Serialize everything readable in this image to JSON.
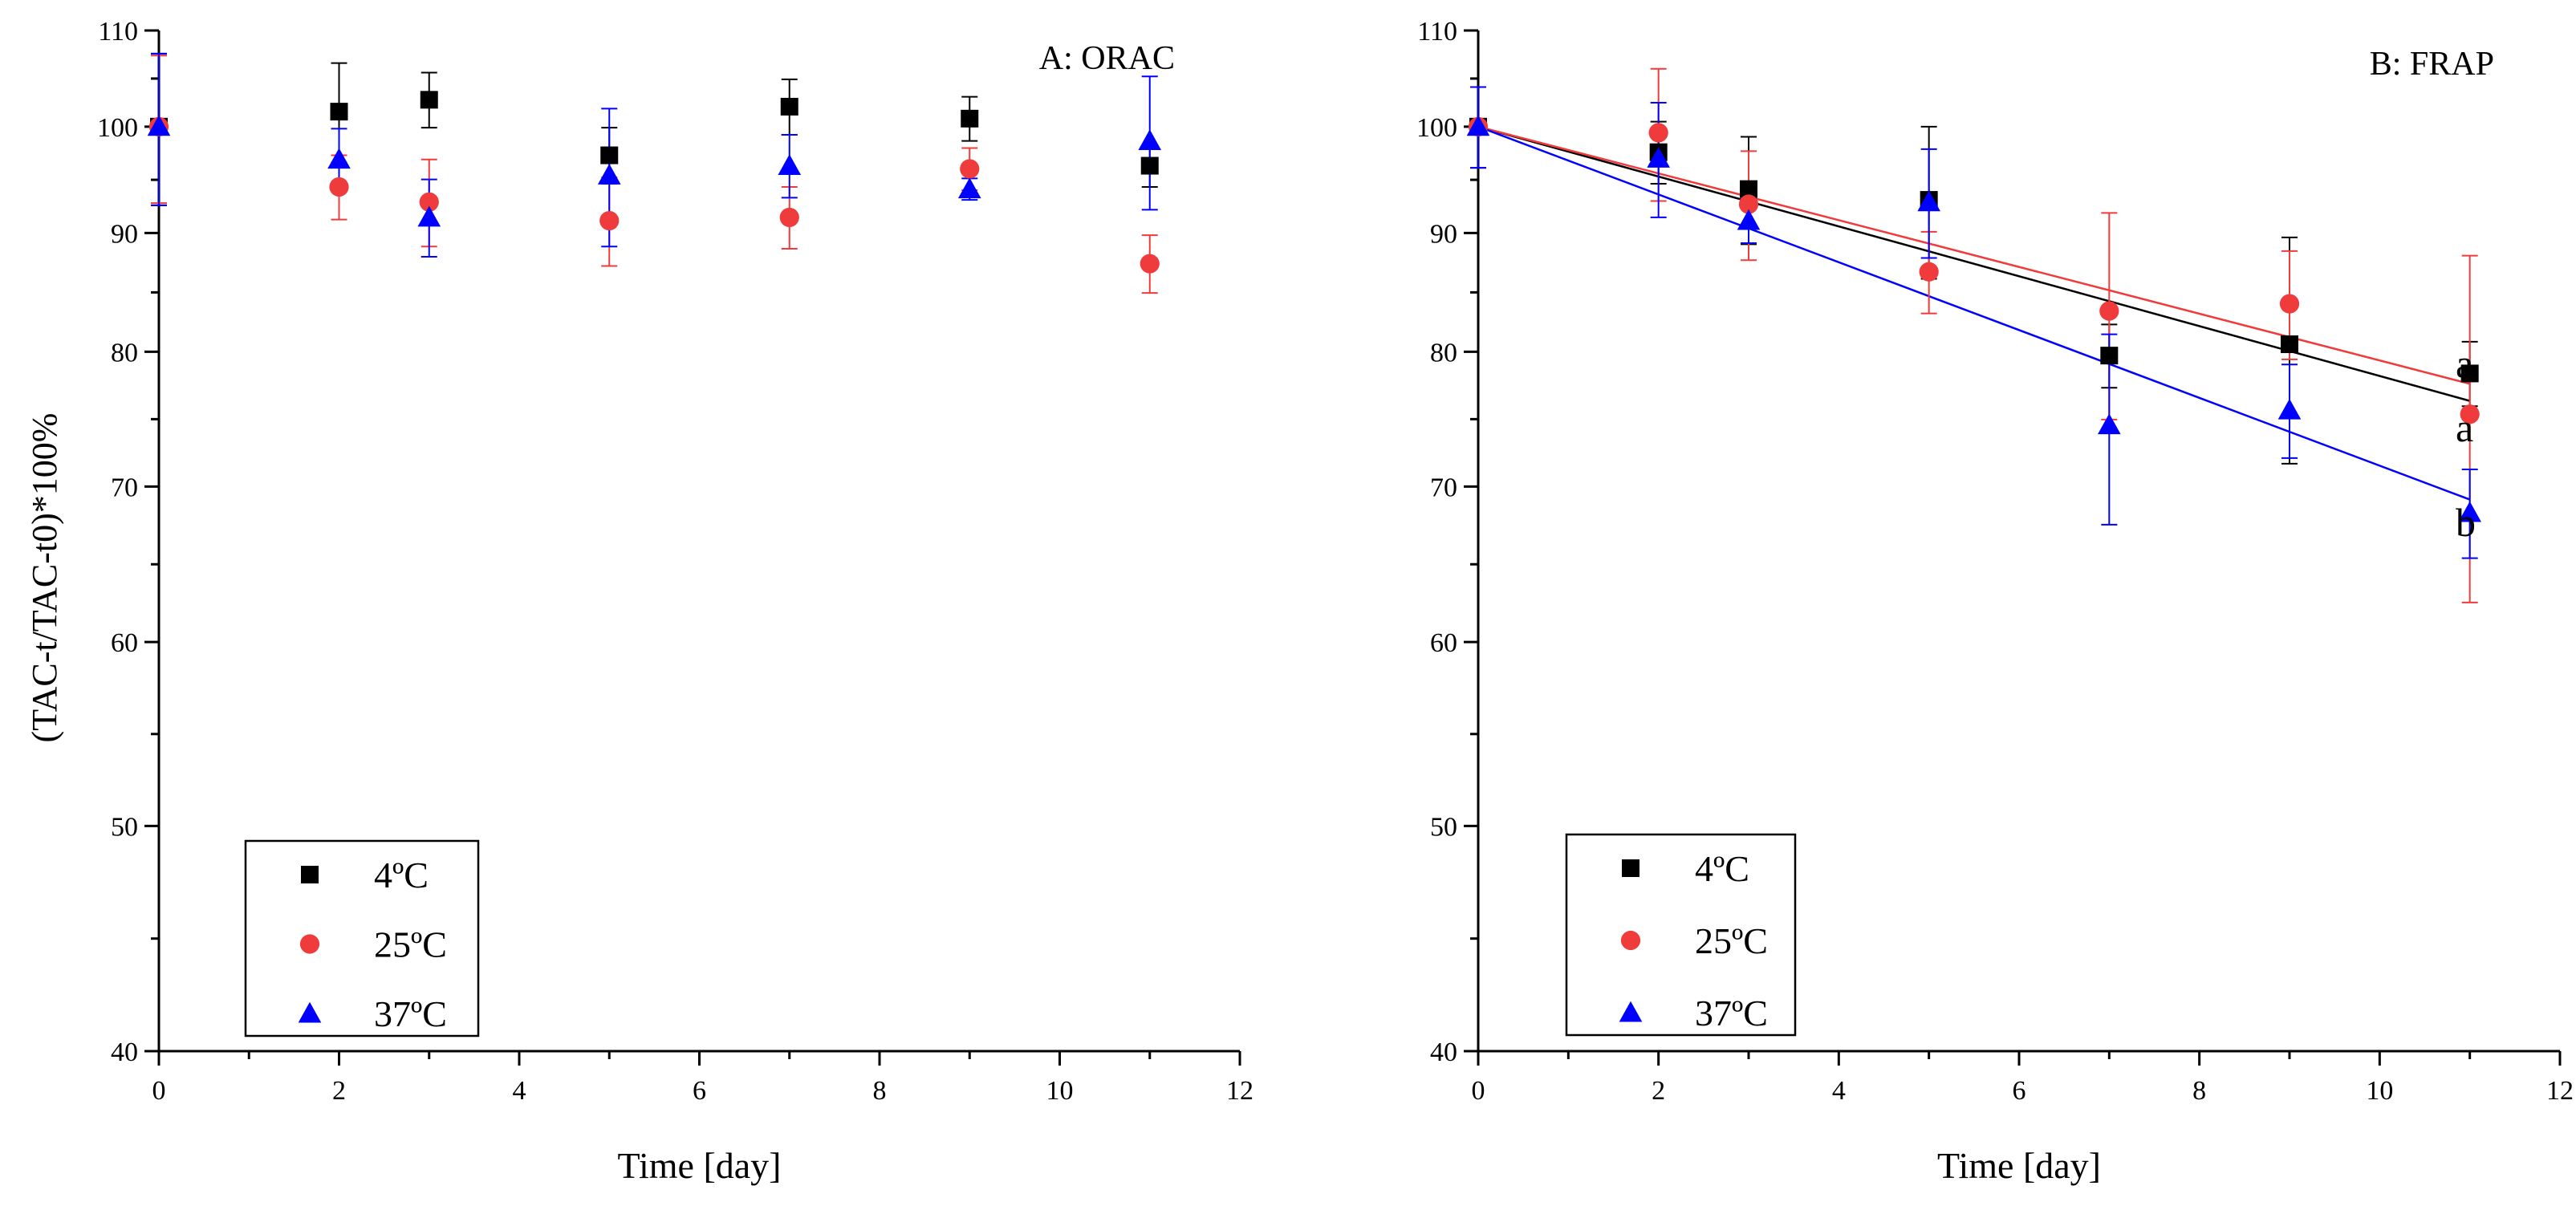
{
  "colors": {
    "c4": "#000000",
    "c25": "#ef3b3b",
    "c37": "#0000ff"
  },
  "shared_ylabel": "(TAC-t/TAC-t0)*100%",
  "legend_entries": [
    {
      "label": "4ºC",
      "marker": "square-icon",
      "color": "#000000"
    },
    {
      "label": "25ºC",
      "marker": "circle-icon",
      "color": "#ef3b3b"
    },
    {
      "label": "37ºC",
      "marker": "triangle-icon",
      "color": "#0000ff"
    }
  ],
  "chart_data": [
    {
      "type": "scatter",
      "title": "A: ORAC",
      "xlabel": "Time [day]",
      "ylabel": "(TAC-t/TAC-t0)*100%",
      "xlim": [
        0,
        12
      ],
      "ylim": [
        40,
        110
      ],
      "yscale": "log",
      "xticks": [
        0,
        2,
        4,
        6,
        8,
        10,
        12
      ],
      "yticks": [
        40,
        50,
        60,
        70,
        80,
        90,
        100,
        110
      ],
      "legend_position": "bottom-left",
      "series": [
        {
          "name": "4ºC",
          "marker": "square",
          "color": "#000000",
          "x": [
            0,
            2,
            3,
            5,
            7,
            9,
            11
          ],
          "y": [
            100.0,
            101.5,
            102.7,
            97.2,
            102.0,
            100.8,
            96.2
          ],
          "err": [
            7.5,
            5.0,
            2.8,
            2.7,
            2.8,
            2.2,
            2.0
          ]
        },
        {
          "name": "25ºC",
          "marker": "circle",
          "color": "#ef3b3b",
          "x": [
            0,
            2,
            3,
            5,
            7,
            9,
            11
          ],
          "y": [
            100.0,
            94.2,
            92.8,
            91.1,
            91.4,
            95.9,
            87.3
          ],
          "err": [
            7.3,
            3.0,
            4.0,
            4.0,
            2.8,
            2.0,
            2.5
          ]
        },
        {
          "name": "37ºC",
          "marker": "triangle",
          "color": "#0000ff",
          "x": [
            0,
            2,
            3,
            5,
            7,
            9,
            11
          ],
          "y": [
            100.0,
            96.8,
            91.4,
            95.3,
            96.2,
            94.0,
            98.6
          ],
          "err": [
            7.5,
            3.0,
            3.5,
            6.5,
            3.0,
            1.0,
            6.5
          ]
        }
      ],
      "fits": [],
      "annotations": []
    },
    {
      "type": "scatter",
      "title": "B: FRAP",
      "xlabel": "Time [day]",
      "ylabel": "(TAC-t/TAC-t0)*100%",
      "xlim": [
        0,
        12
      ],
      "ylim": [
        40,
        110
      ],
      "yscale": "log",
      "xticks": [
        0,
        2,
        4,
        6,
        8,
        10,
        12
      ],
      "yticks": [
        40,
        50,
        60,
        70,
        80,
        90,
        100,
        110
      ],
      "legend_position": "bottom-left",
      "series": [
        {
          "name": "4ºC",
          "marker": "square",
          "color": "#000000",
          "x": [
            0,
            2,
            3,
            5,
            7,
            9,
            11
          ],
          "y": [
            100.0,
            97.5,
            94.0,
            93.0,
            79.7,
            80.6,
            78.3
          ],
          "err": [
            4.0,
            3.0,
            5.0,
            7.0,
            2.5,
            9.0,
            2.5
          ]
        },
        {
          "name": "25ºC",
          "marker": "circle",
          "color": "#ef3b3b",
          "x": [
            0,
            2,
            3,
            5,
            7,
            9,
            11
          ],
          "y": [
            100.0,
            99.4,
            92.6,
            86.6,
            83.3,
            83.9,
            75.2
          ],
          "err": [
            4.0,
            6.5,
            5.0,
            3.5,
            8.5,
            4.5,
            12.8
          ]
        },
        {
          "name": "37ºC",
          "marker": "triangle",
          "color": "#0000ff",
          "x": [
            0,
            2,
            3,
            5,
            7,
            9,
            11
          ],
          "y": [
            100.0,
            96.9,
            91.1,
            92.8,
            74.4,
            75.5,
            68.2
          ],
          "err": [
            4.0,
            5.5,
            2.0,
            5.0,
            7.0,
            3.5,
            3.0
          ]
        }
      ],
      "fits": [
        {
          "name": "4ºC",
          "color": "#000000",
          "x": [
            0,
            11
          ],
          "y": [
            100.0,
            76.2
          ]
        },
        {
          "name": "25ºC",
          "color": "#ef3b3b",
          "x": [
            0,
            11
          ],
          "y": [
            100.0,
            77.5
          ]
        },
        {
          "name": "37ºC",
          "color": "#0000ff",
          "x": [
            0,
            11
          ],
          "y": [
            100.0,
            69.1
          ]
        }
      ],
      "annotations": [
        {
          "text": "a",
          "series": "4ºC"
        },
        {
          "text": "a",
          "series": "25ºC"
        },
        {
          "text": "b",
          "series": "37ºC"
        }
      ]
    }
  ]
}
